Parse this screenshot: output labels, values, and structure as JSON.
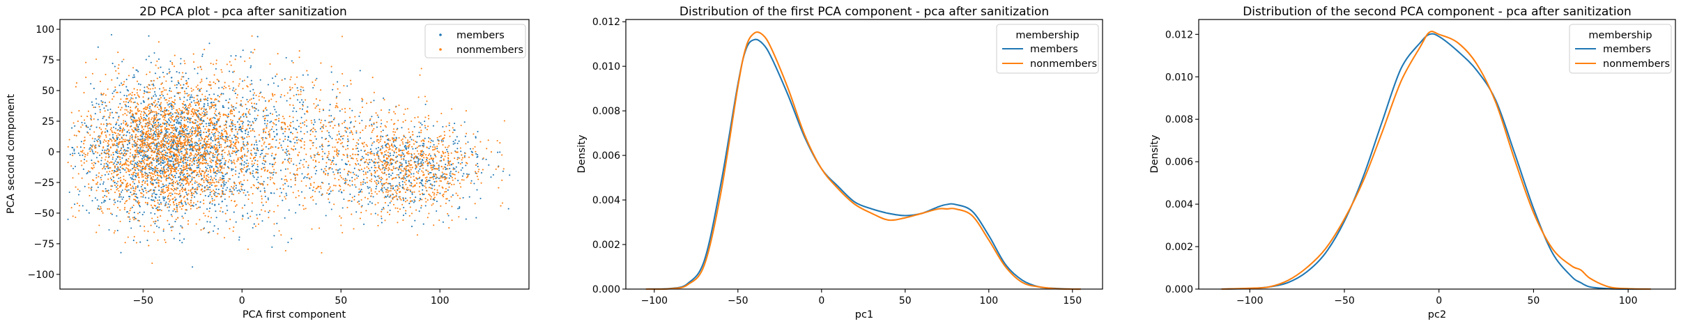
{
  "colors": {
    "members": "#1f77b4",
    "nonmembers": "#ff7f0e"
  },
  "chart_data": [
    {
      "type": "scatter",
      "title": "2D PCA plot - pca after sanitization",
      "xlabel": "PCA first component",
      "ylabel": "PCA second component",
      "xlim": [
        -92,
        145
      ],
      "ylim": [
        -112,
        108
      ],
      "xticks": [
        -50,
        0,
        50,
        100
      ],
      "yticks": [
        -100,
        -75,
        -50,
        -25,
        0,
        25,
        50,
        75,
        100
      ],
      "grid": false,
      "legend": {
        "placement": "top-right",
        "title": ""
      },
      "series": [
        {
          "name": "members",
          "color": "#1f77b4",
          "description_points": {
            "x_range": [
              -82,
              135
            ],
            "y_range": [
              -102,
              95
            ],
            "main_cluster_center": [
              -40,
              0
            ],
            "secondary_cluster_center": [
              85,
              -12
            ]
          }
        },
        {
          "name": "nonmembers",
          "color": "#ff7f0e",
          "description_points": {
            "x_range": [
              -85,
              132
            ],
            "y_range": [
              -100,
              100
            ],
            "main_cluster_center": [
              -40,
              0
            ],
            "secondary_cluster_center": [
              85,
              -12
            ]
          }
        }
      ]
    },
    {
      "type": "line",
      "title": "Distribution of the first PCA component - pca after sanitization",
      "xlabel": "pc1",
      "ylabel": "Density",
      "xlim": [
        -117,
        168
      ],
      "ylim": [
        0,
        0.0121
      ],
      "xticks": [
        -100,
        -50,
        0,
        50,
        100,
        150
      ],
      "yticks": [
        0.0,
        0.002,
        0.004,
        0.006,
        0.008,
        0.01,
        0.012
      ],
      "ytick_labels": [
        "0.000",
        "0.002",
        "0.004",
        "0.006",
        "0.008",
        "0.010",
        "0.012"
      ],
      "grid": false,
      "legend": {
        "placement": "top-right",
        "title": "membership"
      },
      "x": [
        -105,
        -90,
        -80,
        -70,
        -60,
        -50,
        -45,
        -40,
        -35,
        -30,
        -20,
        -10,
        0,
        10,
        20,
        30,
        40,
        50,
        60,
        70,
        75,
        80,
        90,
        100,
        110,
        120,
        130,
        140,
        150,
        155
      ],
      "series": [
        {
          "name": "members",
          "color": "#1f77b4",
          "values": [
            0.0,
            3e-05,
            0.00025,
            0.0013,
            0.0048,
            0.0092,
            0.0108,
            0.0112,
            0.011,
            0.0104,
            0.0087,
            0.0068,
            0.0054,
            0.0046,
            0.0039,
            0.0036,
            0.0034,
            0.0033,
            0.0034,
            0.0037,
            0.0038,
            0.0038,
            0.0035,
            0.0024,
            0.0011,
            0.0004,
            0.0001,
            3e-05,
            0.0,
            0.0
          ]
        },
        {
          "name": "nonmembers",
          "color": "#ff7f0e",
          "values": [
            0.0,
            2e-05,
            0.0002,
            0.0011,
            0.0044,
            0.0091,
            0.0109,
            0.0115,
            0.0114,
            0.0108,
            0.009,
            0.0069,
            0.0054,
            0.0045,
            0.0038,
            0.0034,
            0.0031,
            0.0032,
            0.0034,
            0.0036,
            0.0036,
            0.0036,
            0.0033,
            0.0022,
            0.001,
            0.0003,
            0.0001,
            2e-05,
            0.0,
            0.0
          ]
        }
      ]
    },
    {
      "type": "line",
      "title": "Distribution of the second PCA component - pca after sanitization",
      "xlabel": "pc2",
      "ylabel": "Density",
      "xlim": [
        -127,
        125
      ],
      "ylim": [
        0,
        0.0127
      ],
      "xticks": [
        -100,
        -50,
        0,
        50,
        100
      ],
      "yticks": [
        0.0,
        0.002,
        0.004,
        0.006,
        0.008,
        0.01,
        0.012
      ],
      "ytick_labels": [
        "0.000",
        "0.002",
        "0.004",
        "0.006",
        "0.008",
        "0.010",
        "0.012"
      ],
      "grid": false,
      "legend": {
        "placement": "top-right",
        "title": "membership"
      },
      "x": [
        -115,
        -100,
        -90,
        -80,
        -70,
        -60,
        -50,
        -40,
        -30,
        -20,
        -10,
        -5,
        0,
        10,
        20,
        30,
        40,
        50,
        60,
        70,
        75,
        80,
        90,
        100,
        112
      ],
      "series": [
        {
          "name": "members",
          "color": "#1f77b4",
          "values": [
            0.0,
            3e-05,
            0.0001,
            0.0003,
            0.0008,
            0.0017,
            0.0032,
            0.0053,
            0.0079,
            0.0104,
            0.0116,
            0.012,
            0.0119,
            0.0112,
            0.0103,
            0.0089,
            0.0064,
            0.0038,
            0.0017,
            0.0006,
            0.0003,
            0.0001,
            2e-05,
            0.0,
            0.0
          ]
        },
        {
          "name": "nonmembers",
          "color": "#ff7f0e",
          "values": [
            0.0,
            4e-05,
            0.0001,
            0.0004,
            0.001,
            0.0019,
            0.0033,
            0.0051,
            0.0074,
            0.0098,
            0.0114,
            0.0121,
            0.012,
            0.0116,
            0.0106,
            0.0088,
            0.0061,
            0.0036,
            0.0019,
            0.0011,
            0.0009,
            0.0005,
            0.0001,
            2e-05,
            0.0
          ]
        }
      ]
    }
  ]
}
